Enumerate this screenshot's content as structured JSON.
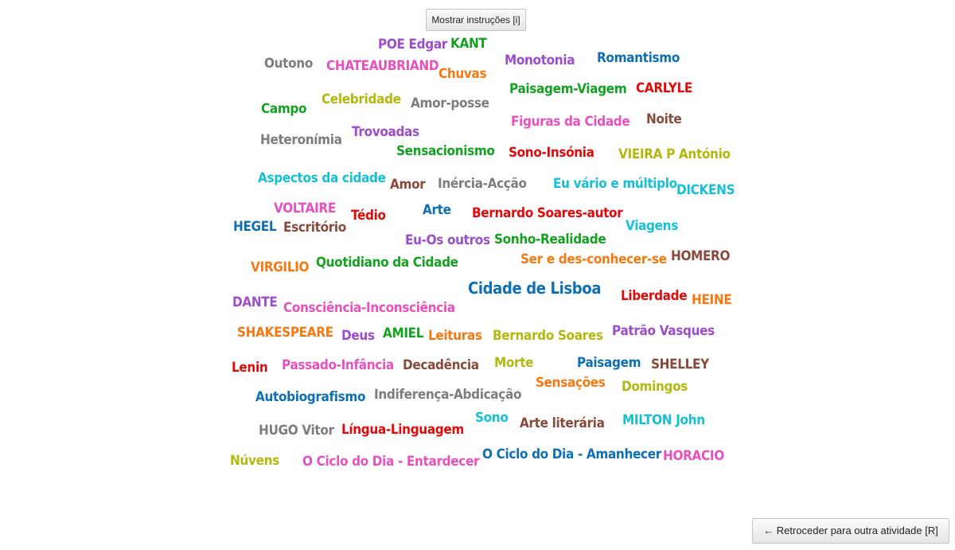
{
  "buttons": {
    "instructions_label": "Mostrar instruções [i]",
    "back_label": "← Retroceder para outra atividade [R]"
  },
  "colors": {
    "purple": "#9b4dca",
    "green": "#15a121",
    "gray": "#7d7d7d",
    "pink": "#e552c0",
    "orange": "#f57a14",
    "blue": "#0f6fb5",
    "red": "#e00b0b",
    "olive": "#b3b80f",
    "brown": "#8a4a3b",
    "cyan": "#16bfd6"
  },
  "words": [
    {
      "text": "POE Edgar",
      "color": "purple"
    },
    {
      "text": "KANT",
      "color": "green"
    },
    {
      "text": "Outono",
      "color": "gray"
    },
    {
      "text": "CHATEAUBRIAND",
      "color": "pink"
    },
    {
      "text": "Chuvas",
      "color": "orange"
    },
    {
      "text": "Monotonia",
      "color": "purple"
    },
    {
      "text": "Romantismo",
      "color": "blue"
    },
    {
      "text": "Paisagem-Viagem",
      "color": "green"
    },
    {
      "text": "CARLYLE",
      "color": "red"
    },
    {
      "text": "Campo",
      "color": "green"
    },
    {
      "text": "Celebridade",
      "color": "olive"
    },
    {
      "text": "Amor-posse",
      "color": "gray"
    },
    {
      "text": "Figuras da Cidade",
      "color": "pink"
    },
    {
      "text": "Noite",
      "color": "brown"
    },
    {
      "text": "Heteronímia",
      "color": "gray"
    },
    {
      "text": "Trovoadas",
      "color": "purple"
    },
    {
      "text": "Sensacionismo",
      "color": "green"
    },
    {
      "text": "Sono-Insónia",
      "color": "red"
    },
    {
      "text": "VIEIRA P António",
      "color": "olive"
    },
    {
      "text": "Aspectos da cidade",
      "color": "cyan"
    },
    {
      "text": "Amor",
      "color": "brown"
    },
    {
      "text": "Inércia-Acção",
      "color": "gray"
    },
    {
      "text": "Eu vário e múltiplo",
      "color": "cyan"
    },
    {
      "text": "DICKENS",
      "color": "cyan"
    },
    {
      "text": "VOLTAIRE",
      "color": "pink"
    },
    {
      "text": "Tédio",
      "color": "red"
    },
    {
      "text": "Arte",
      "color": "blue"
    },
    {
      "text": "Bernardo Soares-autor",
      "color": "red"
    },
    {
      "text": "HEGEL",
      "color": "blue"
    },
    {
      "text": "Escritório",
      "color": "brown"
    },
    {
      "text": "Viagens",
      "color": "cyan"
    },
    {
      "text": "Eu-Os outros",
      "color": "purple"
    },
    {
      "text": "Sonho-Realidade",
      "color": "green"
    },
    {
      "text": "VIRGILIO",
      "color": "orange"
    },
    {
      "text": "Quotidiano da Cidade",
      "color": "green"
    },
    {
      "text": "Ser e des-conhecer-se",
      "color": "orange"
    },
    {
      "text": "HOMERO",
      "color": "brown"
    },
    {
      "text": "Cidade de Lisboa",
      "color": "blue"
    },
    {
      "text": "Liberdade",
      "color": "red"
    },
    {
      "text": "HEINE",
      "color": "orange"
    },
    {
      "text": "DANTE",
      "color": "purple"
    },
    {
      "text": "Consciência-Inconsciência",
      "color": "pink"
    },
    {
      "text": "SHAKESPEARE",
      "color": "orange"
    },
    {
      "text": "Deus",
      "color": "purple"
    },
    {
      "text": "AMIEL",
      "color": "green"
    },
    {
      "text": "Leituras",
      "color": "orange"
    },
    {
      "text": "Bernardo Soares",
      "color": "olive"
    },
    {
      "text": "Patrão Vasques",
      "color": "purple"
    },
    {
      "text": "Lenin",
      "color": "red"
    },
    {
      "text": "Passado-Infância",
      "color": "pink"
    },
    {
      "text": "Decadência",
      "color": "brown"
    },
    {
      "text": "Morte",
      "color": "olive"
    },
    {
      "text": "Paisagem",
      "color": "blue"
    },
    {
      "text": "SHELLEY",
      "color": "brown"
    },
    {
      "text": "Sensações",
      "color": "orange"
    },
    {
      "text": "Autobiografismo",
      "color": "blue"
    },
    {
      "text": "Indiferença-Abdicação",
      "color": "gray"
    },
    {
      "text": "Domingos",
      "color": "olive"
    },
    {
      "text": "Sono",
      "color": "cyan"
    },
    {
      "text": "Arte literária",
      "color": "brown"
    },
    {
      "text": "MILTON John",
      "color": "cyan"
    },
    {
      "text": "HUGO Vitor",
      "color": "gray"
    },
    {
      "text": "Língua-Linguagem",
      "color": "red"
    },
    {
      "text": "Núvens",
      "color": "olive"
    },
    {
      "text": "O Ciclo do Dia - Entardecer",
      "color": "pink"
    },
    {
      "text": "O Ciclo do Dia - Amanhecer",
      "color": "blue"
    },
    {
      "text": "HORACIO",
      "color": "pink"
    }
  ]
}
